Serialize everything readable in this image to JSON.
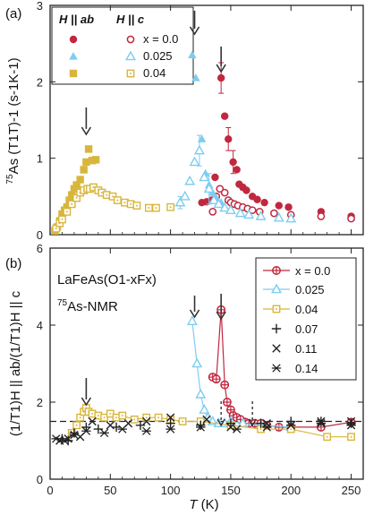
{
  "colors": {
    "x0": "#c0283f",
    "x025": "#7ecdf0",
    "x04": "#d8b63b",
    "black": "#222222"
  },
  "chart_data": [
    {
      "type": "scatter",
      "panel_label": "(a)",
      "ylabel_prefix": "75",
      "ylabel": "As (T1T)-1 (s-1K-1)",
      "xlim": [
        0,
        260
      ],
      "ylim": [
        0,
        3
      ],
      "xticks": [
        0,
        50,
        100,
        150,
        200,
        250
      ],
      "yticks": [
        "0",
        "1",
        "2",
        "3"
      ],
      "legend": {
        "col1_header": "H || ab",
        "col2_header": "H || c",
        "entries": [
          "x = 0.0",
          "0.025",
          "0.04"
        ]
      },
      "series": [
        {
          "name": "x = 0.0",
          "orientation": "H || ab",
          "marker": "circle-filled",
          "color": "x0",
          "points": [
            [
              126,
              0.42
            ],
            [
              130,
              0.43
            ],
            [
              134,
              0.45
            ],
            [
              137,
              0.75
            ],
            [
              142,
              2.05
            ],
            [
              145,
              1.55
            ],
            [
              148,
              1.25
            ],
            [
              152,
              0.95
            ],
            [
              155,
              0.85
            ],
            [
              157,
              0.66
            ],
            [
              160,
              0.62
            ],
            [
              163,
              0.58
            ],
            [
              168,
              0.5
            ],
            [
              172,
              0.46
            ],
            [
              178,
              0.42
            ],
            [
              190,
              0.38
            ],
            [
              198,
              0.36
            ],
            [
              225,
              0.3
            ],
            [
              250,
              0.24
            ]
          ],
          "errors": [
            [
              142,
              0.2
            ],
            [
              152,
              0.15
            ],
            [
              148,
              0.15
            ]
          ]
        },
        {
          "name": "x = 0.0",
          "orientation": "H || c",
          "marker": "circle-open",
          "color": "x0",
          "points": [
            [
              135,
              0.3
            ],
            [
              138,
              0.5
            ],
            [
              141,
              0.6
            ],
            [
              145,
              0.55
            ],
            [
              148,
              0.45
            ],
            [
              150,
              0.42
            ],
            [
              153,
              0.4
            ],
            [
              156,
              0.38
            ],
            [
              160,
              0.36
            ],
            [
              164,
              0.34
            ],
            [
              168,
              0.32
            ],
            [
              174,
              0.3
            ],
            [
              186,
              0.28
            ],
            [
              200,
              0.26
            ],
            [
              225,
              0.24
            ],
            [
              250,
              0.21
            ]
          ]
        },
        {
          "name": "0.025",
          "orientation": "H || ab",
          "marker": "triangle-filled",
          "color": "x025",
          "points": [
            [
              118,
              2.35
            ],
            [
              121,
              2.05
            ],
            [
              126,
              1.25
            ],
            [
              129,
              0.8
            ],
            [
              132,
              0.65
            ],
            [
              135,
              0.55
            ],
            [
              138,
              0.48
            ],
            [
              142,
              0.42
            ]
          ]
        },
        {
          "name": "0.025",
          "orientation": "H || c",
          "marker": "triangle-open",
          "color": "x025",
          "points": [
            [
              108,
              0.42
            ],
            [
              112,
              0.5
            ],
            [
              116,
              0.7
            ],
            [
              120,
              0.95
            ],
            [
              124,
              1.1
            ],
            [
              128,
              0.75
            ],
            [
              132,
              0.6
            ],
            [
              136,
              0.45
            ],
            [
              140,
              0.4
            ],
            [
              145,
              0.35
            ],
            [
              150,
              0.32
            ],
            [
              158,
              0.28
            ],
            [
              165,
              0.26
            ],
            [
              175,
              0.24
            ],
            [
              190,
              0.22
            ],
            [
              200,
              0.21
            ]
          ],
          "errors": [
            [
              108,
              0.08
            ],
            [
              124,
              0.2
            ],
            [
              132,
              0.2
            ]
          ]
        },
        {
          "name": "0.04",
          "orientation": "H || ab",
          "marker": "square-filled",
          "color": "x04",
          "points": [
            [
              4,
              0.05
            ],
            [
              6,
              0.1
            ],
            [
              8,
              0.18
            ],
            [
              10,
              0.27
            ],
            [
              12,
              0.32
            ],
            [
              14,
              0.36
            ],
            [
              16,
              0.45
            ],
            [
              18,
              0.52
            ],
            [
              20,
              0.6
            ],
            [
              22,
              0.65
            ],
            [
              25,
              0.72
            ],
            [
              28,
              0.85
            ],
            [
              30,
              0.95
            ],
            [
              32,
              1.12
            ],
            [
              35,
              0.97
            ],
            [
              38,
              0.98
            ]
          ]
        },
        {
          "name": "0.04",
          "orientation": "H || c",
          "marker": "square-open",
          "color": "x04",
          "points": [
            [
              5,
              0.08
            ],
            [
              8,
              0.15
            ],
            [
              10,
              0.2
            ],
            [
              14,
              0.3
            ],
            [
              18,
              0.4
            ],
            [
              22,
              0.48
            ],
            [
              25,
              0.55
            ],
            [
              28,
              0.58
            ],
            [
              31,
              0.6
            ],
            [
              33,
              0.6
            ],
            [
              36,
              0.62
            ],
            [
              40,
              0.58
            ],
            [
              43,
              0.55
            ],
            [
              47,
              0.52
            ],
            [
              52,
              0.5
            ],
            [
              56,
              0.45
            ],
            [
              62,
              0.42
            ],
            [
              67,
              0.4
            ],
            [
              72,
              0.38
            ],
            [
              82,
              0.35
            ],
            [
              88,
              0.35
            ],
            [
              100,
              0.36
            ]
          ]
        }
      ],
      "arrows_at_x": [
        30,
        120,
        142
      ]
    },
    {
      "type": "scatter",
      "panel_label": "(b)",
      "ylabel": "(1/T1)H || ab/(1/T1)H || c",
      "xlabel_italic": "T",
      "xlabel_unit": " (K)",
      "xlim": [
        0,
        260
      ],
      "ylim": [
        0,
        6
      ],
      "xticks": [
        "0",
        "50",
        "100",
        "150",
        "200",
        "250"
      ],
      "yticks": [
        "0",
        "2",
        "4",
        "6"
      ],
      "annotation_formula": "LaFeAs(O1-xFx)",
      "annotation_nmr": "As-NMR",
      "annotation_nmr_sup": "75",
      "reference_line_y": 1.5,
      "legend_entries": [
        "x = 0.0",
        "0.025",
        "0.04",
        "0.07",
        "0.11",
        "0.14"
      ],
      "series": [
        {
          "name": "x = 0.0",
          "marker": "circle-cross",
          "color": "x0",
          "connected": true,
          "points": [
            [
              135,
              2.65
            ],
            [
              138,
              2.6
            ],
            [
              142,
              4.4
            ],
            [
              145,
              2.45
            ],
            [
              147,
              2.0
            ],
            [
              150,
              1.8
            ],
            [
              152,
              1.65
            ],
            [
              155,
              1.6
            ],
            [
              158,
              1.55
            ],
            [
              162,
              1.48
            ],
            [
              165,
              1.45
            ],
            [
              170,
              1.45
            ],
            [
              175,
              1.45
            ],
            [
              180,
              1.4
            ],
            [
              190,
              1.35
            ],
            [
              200,
              1.35
            ],
            [
              225,
              1.35
            ],
            [
              250,
              1.48
            ]
          ]
        },
        {
          "name": "0.025",
          "marker": "triangle-open",
          "color": "x025",
          "connected": true,
          "points": [
            [
              118,
              4.1
            ],
            [
              122,
              3.0
            ],
            [
              125,
              2.2
            ],
            [
              128,
              1.8
            ],
            [
              131,
              1.6
            ],
            [
              135,
              1.5
            ],
            [
              140,
              1.45
            ],
            [
              145,
              1.45
            ],
            [
              150,
              1.5
            ],
            [
              160,
              1.45
            ],
            [
              175,
              1.4
            ],
            [
              200,
              1.35
            ]
          ]
        },
        {
          "name": "0.04",
          "marker": "square-open",
          "color": "x04",
          "connected": true,
          "points": [
            [
              18,
              1.2
            ],
            [
              22,
              1.4
            ],
            [
              25,
              1.6
            ],
            [
              28,
              1.75
            ],
            [
              30,
              1.85
            ],
            [
              32,
              1.75
            ],
            [
              35,
              1.7
            ],
            [
              40,
              1.65
            ],
            [
              45,
              1.6
            ],
            [
              50,
              1.7
            ],
            [
              55,
              1.6
            ],
            [
              60,
              1.65
            ],
            [
              70,
              1.55
            ],
            [
              80,
              1.6
            ],
            [
              90,
              1.6
            ],
            [
              100,
              1.55
            ],
            [
              110,
              1.5
            ],
            [
              125,
              1.5
            ],
            [
              150,
              1.4
            ],
            [
              175,
              1.3
            ],
            [
              200,
              1.3
            ],
            [
              230,
              1.1
            ],
            [
              250,
              1.1
            ]
          ]
        },
        {
          "name": "0.07",
          "marker": "plus",
          "color": "black",
          "points": [
            [
              10,
              1.05
            ],
            [
              15,
              1.0
            ],
            [
              20,
              1.2
            ],
            [
              30,
              1.35
            ],
            [
              40,
              1.3
            ],
            [
              55,
              1.35
            ],
            [
              75,
              1.4
            ],
            [
              100,
              1.45
            ],
            [
              125,
              1.4
            ],
            [
              150,
              1.45
            ],
            [
              175,
              1.45
            ],
            [
              200,
              1.5
            ],
            [
              225,
              1.5
            ],
            [
              250,
              1.45
            ]
          ]
        },
        {
          "name": "0.11",
          "marker": "x",
          "color": "black",
          "points": [
            [
              8,
              1.0
            ],
            [
              15,
              1.05
            ],
            [
              25,
              1.1
            ],
            [
              35,
              1.5
            ],
            [
              50,
              1.4
            ],
            [
              65,
              1.45
            ],
            [
              80,
              1.5
            ],
            [
              100,
              1.6
            ],
            [
              130,
              1.55
            ],
            [
              150,
              1.35
            ],
            [
              180,
              1.45
            ],
            [
              200,
              1.4
            ],
            [
              225,
              1.5
            ],
            [
              250,
              1.5
            ]
          ]
        },
        {
          "name": "0.14",
          "marker": "asterisk",
          "color": "black",
          "points": [
            [
              5,
              1.05
            ],
            [
              12,
              1.0
            ],
            [
              20,
              1.15
            ],
            [
              30,
              1.25
            ],
            [
              45,
              1.2
            ],
            [
              60,
              1.3
            ],
            [
              80,
              1.25
            ],
            [
              100,
              1.3
            ],
            [
              125,
              1.35
            ],
            [
              155,
              1.3
            ],
            [
              180,
              1.35
            ],
            [
              200,
              1.4
            ],
            [
              225,
              1.45
            ],
            [
              250,
              1.4
            ]
          ]
        }
      ],
      "arrows_at_x": [
        30,
        120,
        142
      ],
      "dashed_arrows_at_x": [
        142,
        168
      ]
    }
  ]
}
